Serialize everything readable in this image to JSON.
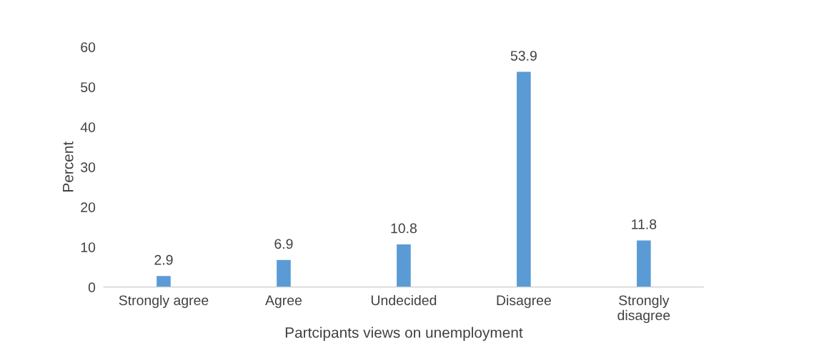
{
  "chart_data": {
    "type": "bar",
    "xlabel": "Partcipants views on unemployment",
    "ylabel": "Percent",
    "categories": [
      "Strongly agree",
      "Agree",
      "Undecided",
      "Disagree",
      "Strongly\ndisagree"
    ],
    "values": [
      2.9,
      6.9,
      10.8,
      53.9,
      11.8
    ],
    "color": "#5b9bd5",
    "ylim": [
      0,
      60
    ],
    "yticks": [
      0,
      10,
      20,
      30,
      40,
      50,
      60
    ],
    "grid": false,
    "data_labels": true
  }
}
